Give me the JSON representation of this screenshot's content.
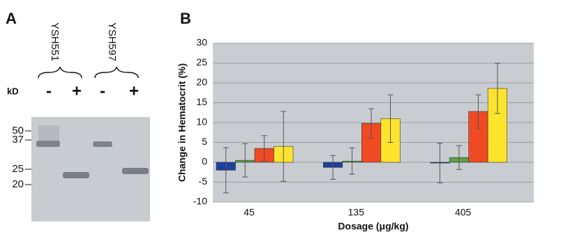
{
  "panel_a": {
    "label": "A",
    "unit": "kD",
    "samples": [
      "YSH551",
      "YSH597"
    ],
    "lanes": [
      "-",
      "+",
      "-",
      "+"
    ],
    "markers": [
      50,
      37,
      25,
      20
    ]
  },
  "chart_data": {
    "type": "bar",
    "label": "B",
    "y_label": "Change in Hematocrit (%)",
    "x_label": "Dosage (μg/kg)",
    "categories": [
      "45",
      "135",
      "405"
    ],
    "series": [
      {
        "color": "#1f3f9e",
        "values": [
          -2,
          -1.3,
          -0.2
        ],
        "errors": [
          5.7,
          3,
          5
        ]
      },
      {
        "color": "#5aa04a",
        "values": [
          0.5,
          0.3,
          1.2
        ],
        "errors": [
          4.2,
          3.3,
          3
        ]
      },
      {
        "color": "#ef4a24",
        "values": [
          3.5,
          9.8,
          12.8
        ],
        "errors": [
          3.2,
          3.7,
          4.2
        ]
      },
      {
        "color": "#ffe42e",
        "values": [
          4,
          11,
          18.6
        ],
        "errors": [
          8.8,
          6,
          6.3
        ]
      }
    ],
    "ylim": [
      -10,
      30
    ],
    "yticks": [
      -10,
      -5,
      0,
      5,
      10,
      15,
      20,
      25,
      30
    ],
    "grid": true
  }
}
